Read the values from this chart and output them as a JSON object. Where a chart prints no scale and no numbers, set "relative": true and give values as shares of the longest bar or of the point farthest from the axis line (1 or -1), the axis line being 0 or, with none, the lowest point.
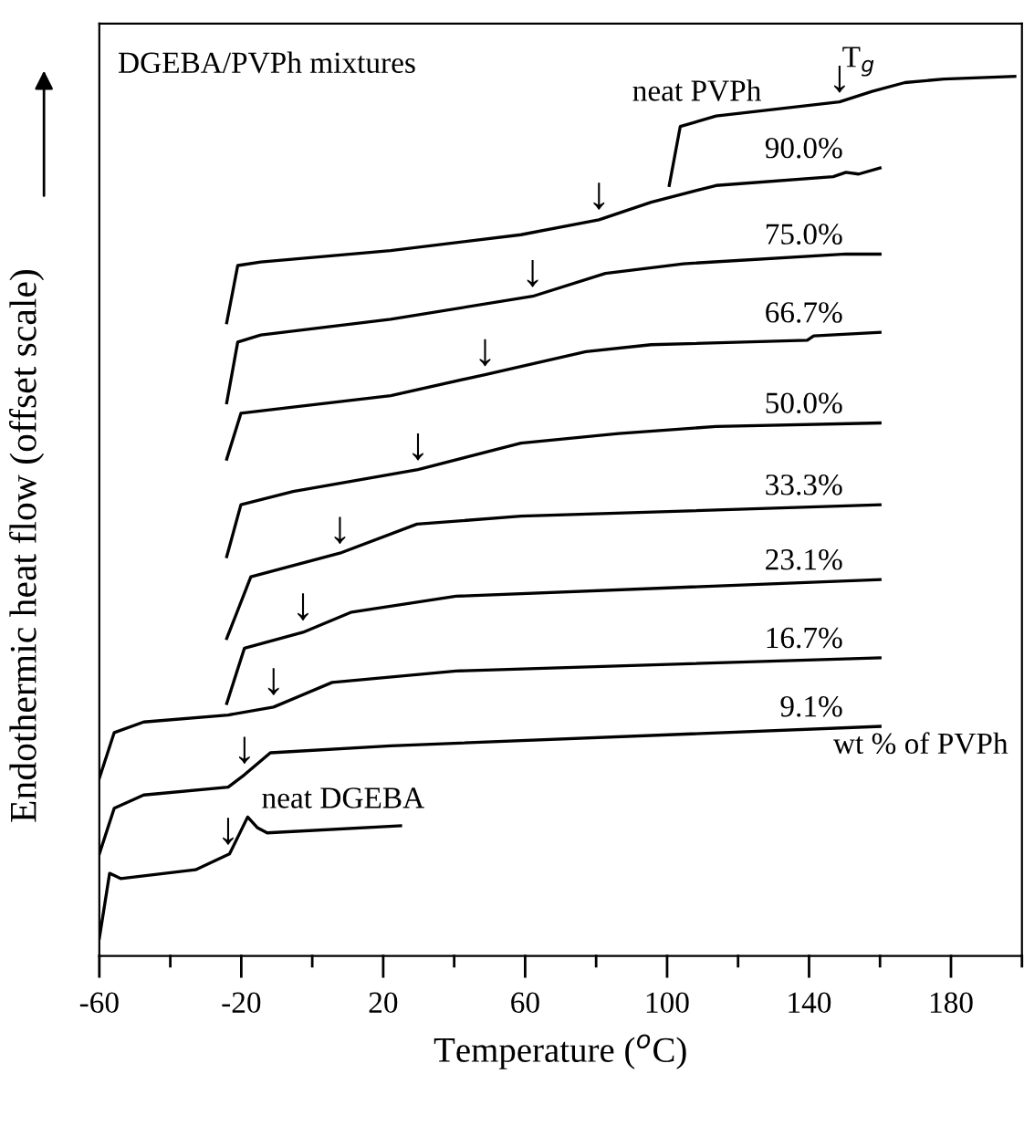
{
  "chart_data": {
    "type": "line",
    "title": "DGEBA/PVPh mixtures",
    "xlabel": "Temperature ($^{o}$C)",
    "ylabel": "Endothermic heat flow (offset scale)",
    "relative": true,
    "xlim": [
      -60,
      200
    ],
    "xticks": [
      -60,
      {
        "value": -40,
        "label": null
      },
      -20,
      {
        "value": 0,
        "label": null
      },
      20,
      {
        "value": 40,
        "label": null
      },
      60,
      {
        "value": 80,
        "label": null
      },
      100,
      {
        "value": 120,
        "label": null
      },
      140,
      {
        "value": 160,
        "label": null
      },
      180,
      {
        "value": 200,
        "label": null
      }
    ],
    "tick_labels": "x",
    "grid": false,
    "legend": false,
    "marker": "none",
    "line_style": "solid",
    "series": [
      {
        "name": "neat PVPh",
        "color": "#000000",
        "x": [
          100.6,
          103.7,
          113.8,
          148.6,
          157.8,
          167,
          178,
          198
        ],
        "values": [
          0.876,
          0.943,
          0.955,
          0.971,
          0.983,
          0.993,
          0.997,
          1.0
        ]
      },
      {
        "name": "90.0%",
        "color": "#000000",
        "x": [
          -24.1,
          -21,
          -14.5,
          22.1,
          58.8,
          80.8,
          95.5,
          113.8,
          146.8,
          150.4,
          154,
          160
        ],
        "values": [
          0.72,
          0.785,
          0.789,
          0.802,
          0.82,
          0.837,
          0.857,
          0.876,
          0.886,
          0.891,
          0.889,
          0.896
        ]
      },
      {
        "name": "75.0%",
        "color": "#000000",
        "x": [
          -24.1,
          -21,
          -14.5,
          22.1,
          62.1,
          82.6,
          104.6,
          150.4,
          160
        ],
        "values": [
          0.629,
          0.698,
          0.706,
          0.724,
          0.75,
          0.776,
          0.787,
          0.798,
          0.798
        ]
      },
      {
        "name": "66.7%",
        "color": "#000000",
        "x": [
          -24.1,
          -20.1,
          -5.4,
          22.1,
          48.7,
          77.1,
          95.5,
          139.5,
          141.3,
          160
        ],
        "values": [
          0.565,
          0.617,
          0.624,
          0.637,
          0.661,
          0.687,
          0.695,
          0.7,
          0.705,
          0.709
        ]
      },
      {
        "name": "50.0%",
        "color": "#000000",
        "x": [
          -24.1,
          -20.1,
          -5.4,
          29.8,
          58.8,
          86.3,
          113.8,
          160
        ],
        "values": [
          0.454,
          0.513,
          0.528,
          0.553,
          0.583,
          0.594,
          0.602,
          0.606
        ]
      },
      {
        "name": "33.3%",
        "color": "#000000",
        "x": [
          -24.1,
          -17.3,
          7.8,
          29.5,
          58.8,
          160
        ],
        "values": [
          0.361,
          0.431,
          0.458,
          0.491,
          0.5,
          0.513
        ]
      },
      {
        "name": "23.1%",
        "color": "#000000",
        "x": [
          -24.1,
          -19.1,
          -2.6,
          11.1,
          40.5,
          160
        ],
        "values": [
          0.287,
          0.35,
          0.368,
          0.391,
          0.409,
          0.428
        ]
      },
      {
        "name": "16.7%",
        "color": "#000000",
        "x": [
          -60,
          -55.8,
          -47.5,
          -23.7,
          -10.9,
          5.6,
          40.5,
          160
        ],
        "values": [
          0.202,
          0.254,
          0.266,
          0.274,
          0.283,
          0.311,
          0.324,
          0.339
        ]
      },
      {
        "name": "9.1%",
        "color": "#000000",
        "x": [
          -60,
          -55.8,
          -47.5,
          -23.7,
          -19.1,
          -11.8,
          22.1,
          160
        ],
        "values": [
          0.116,
          0.168,
          0.183,
          0.192,
          0.206,
          0.231,
          0.239,
          0.261
        ]
      },
      {
        "name": "neat DGEBA",
        "color": "#000000",
        "x": [
          -60,
          -57.1,
          -54,
          -32.9,
          -23.3,
          -18.2,
          -15.5,
          -12.7,
          24.9
        ],
        "values": [
          0.02,
          0.094,
          0.088,
          0.098,
          0.116,
          0.158,
          0.146,
          0.14,
          0.148
        ]
      }
    ],
    "annotations": [
      "T$_{g}$",
      {
        "text": "↓",
        "x": 148.6,
        "y": 0.972
      },
      {
        "text": "↓",
        "x": 80.8,
        "y": 0.839
      },
      {
        "text": "↓",
        "x": 62.1,
        "y": 0.751
      },
      {
        "text": "↓",
        "x": 48.7,
        "y": 0.661
      },
      {
        "text": "↓",
        "x": 29.8,
        "y": 0.554
      },
      {
        "text": "↓",
        "x": 7.8,
        "y": 0.459
      },
      {
        "text": "↓",
        "x": -2.6,
        "y": 0.372
      },
      {
        "text": "↓",
        "x": -10.9,
        "y": 0.287
      },
      {
        "text": "↓",
        "x": -19.1,
        "y": 0.209
      },
      {
        "text": "↓",
        "x": -23.7,
        "y": 0.117
      },
      "wt % of PVPh"
    ]
  }
}
